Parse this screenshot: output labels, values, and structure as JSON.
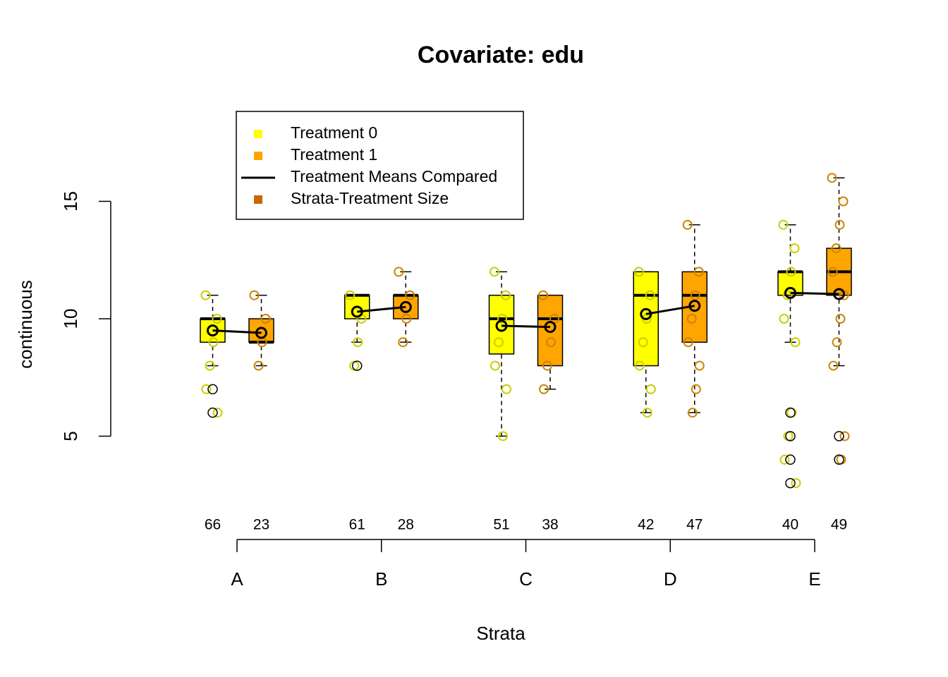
{
  "chart_data": {
    "type": "box",
    "title": "Covariate: edu",
    "xlabel": "Strata",
    "ylabel": "continuous",
    "categories": [
      "A",
      "B",
      "C",
      "D",
      "E"
    ],
    "ylim": [
      0.6,
      19
    ],
    "yticks": [
      5,
      10,
      15
    ],
    "series": [
      {
        "name": "Treatment 0",
        "color": "#ffff00",
        "point_color": "#cdcd00",
        "boxes": [
          {
            "whislo": 8,
            "q1": 9,
            "med": 10,
            "q3": 10,
            "whishi": 11,
            "mean": 9.5,
            "n": 66,
            "points": [
              11,
              10,
              9,
              8,
              7,
              6
            ],
            "outliers": [
              7,
              6
            ]
          },
          {
            "whislo": 9,
            "q1": 10,
            "med": 11,
            "q3": 11,
            "whishi": 11,
            "mean": 10.3,
            "n": 61,
            "points": [
              11,
              10,
              9,
              8
            ],
            "outliers": [
              8
            ]
          },
          {
            "whislo": 5,
            "q1": 8.5,
            "med": 10,
            "q3": 11,
            "whishi": 12,
            "mean": 9.7,
            "n": 51,
            "points": [
              12,
              11,
              10,
              9,
              8,
              7,
              5
            ],
            "outliers": []
          },
          {
            "whislo": 6,
            "q1": 8,
            "med": 11,
            "q3": 12,
            "whishi": 12,
            "mean": 10.2,
            "n": 42,
            "points": [
              12,
              11,
              10,
              9,
              8,
              7,
              6
            ],
            "outliers": []
          },
          {
            "whislo": 9,
            "q1": 11,
            "med": 12,
            "q3": 12,
            "whishi": 14,
            "mean": 11.1,
            "n": 40,
            "points": [
              14,
              13,
              12,
              11,
              10,
              9,
              6,
              5,
              4,
              3
            ],
            "outliers": [
              6,
              5,
              4,
              3
            ]
          }
        ]
      },
      {
        "name": "Treatment 1",
        "color": "#ffa500",
        "point_color": "#cd8500",
        "boxes": [
          {
            "whislo": 8,
            "q1": 9,
            "med": 9,
            "q3": 10,
            "whishi": 11,
            "mean": 9.4,
            "n": 23,
            "points": [
              11,
              10,
              9,
              8
            ],
            "outliers": []
          },
          {
            "whislo": 9,
            "q1": 10,
            "med": 11,
            "q3": 11,
            "whishi": 12,
            "mean": 10.5,
            "n": 28,
            "points": [
              12,
              11,
              10,
              9
            ],
            "outliers": []
          },
          {
            "whislo": 7,
            "q1": 8,
            "med": 10,
            "q3": 11,
            "whishi": 11,
            "mean": 9.65,
            "n": 38,
            "points": [
              11,
              10,
              9,
              8,
              7
            ],
            "outliers": []
          },
          {
            "whislo": 6,
            "q1": 9,
            "med": 11,
            "q3": 12,
            "whishi": 14,
            "mean": 10.55,
            "n": 47,
            "points": [
              14,
              12,
              11,
              10,
              9,
              8,
              7,
              6
            ],
            "outliers": []
          },
          {
            "whislo": 8,
            "q1": 11,
            "med": 12,
            "q3": 13,
            "whishi": 16,
            "mean": 11.05,
            "n": 49,
            "points": [
              16,
              15,
              14,
              13,
              12,
              11,
              10,
              9,
              8,
              5,
              4
            ],
            "outliers": [
              5,
              4
            ]
          }
        ]
      }
    ],
    "mean_line": {
      "name": "Treatment Means Compared",
      "color": "#000000"
    },
    "size_legend": {
      "name": "Strata-Treatment Size",
      "color": "#cd6600"
    }
  }
}
